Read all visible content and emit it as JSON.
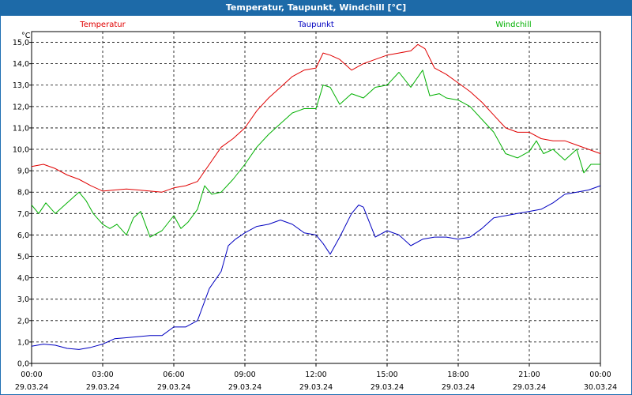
{
  "window": {
    "title": "Temperatur, Taupunkt, Windchill [°C]"
  },
  "chart_data": {
    "type": "line",
    "title": "Temperatur, Taupunkt, Windchill [°C]",
    "ylabel": "°C",
    "ylim": [
      0,
      15.5
    ],
    "yticks": [
      "0,0",
      "1,0",
      "2,0",
      "3,0",
      "4,0",
      "5,0",
      "6,0",
      "7,0",
      "8,0",
      "9,0",
      "10,0",
      "11,0",
      "12,0",
      "13,0",
      "14,0",
      "15,0"
    ],
    "xlim": [
      0,
      24
    ],
    "xticks": [
      {
        "time": "00:00",
        "date": "29.03.24"
      },
      {
        "time": "03:00",
        "date": "29.03.24"
      },
      {
        "time": "06:00",
        "date": "29.03.24"
      },
      {
        "time": "09:00",
        "date": "29.03.24"
      },
      {
        "time": "12:00",
        "date": "29.03.24"
      },
      {
        "time": "15:00",
        "date": "29.03.24"
      },
      {
        "time": "18:00",
        "date": "29.03.24"
      },
      {
        "time": "21:00",
        "date": "29.03.24"
      },
      {
        "time": "00:00",
        "date": "30.03.24"
      }
    ],
    "grid": true,
    "legend_position": "top",
    "series": [
      {
        "name": "Temperatur",
        "color": "#e00000",
        "points": [
          [
            0,
            9.2
          ],
          [
            0.5,
            9.3
          ],
          [
            1,
            9.1
          ],
          [
            1.5,
            8.8
          ],
          [
            2,
            8.6
          ],
          [
            2.5,
            8.3
          ],
          [
            3,
            8.05
          ],
          [
            3.5,
            8.1
          ],
          [
            4,
            8.15
          ],
          [
            4.5,
            8.1
          ],
          [
            5,
            8.05
          ],
          [
            5.5,
            8.0
          ],
          [
            6,
            8.2
          ],
          [
            6.5,
            8.3
          ],
          [
            7,
            8.5
          ],
          [
            7.5,
            9.3
          ],
          [
            8,
            10.1
          ],
          [
            8.5,
            10.5
          ],
          [
            9,
            11.0
          ],
          [
            9.5,
            11.8
          ],
          [
            10,
            12.4
          ],
          [
            10.5,
            12.9
          ],
          [
            11,
            13.4
          ],
          [
            11.5,
            13.7
          ],
          [
            12,
            13.8
          ],
          [
            12.3,
            14.5
          ],
          [
            12.6,
            14.4
          ],
          [
            13,
            14.2
          ],
          [
            13.5,
            13.7
          ],
          [
            14,
            14.0
          ],
          [
            14.5,
            14.2
          ],
          [
            15,
            14.4
          ],
          [
            15.5,
            14.5
          ],
          [
            16,
            14.6
          ],
          [
            16.3,
            14.9
          ],
          [
            16.6,
            14.7
          ],
          [
            17,
            13.8
          ],
          [
            17.5,
            13.5
          ],
          [
            18,
            13.1
          ],
          [
            18.5,
            12.7
          ],
          [
            19,
            12.2
          ],
          [
            19.5,
            11.6
          ],
          [
            20,
            11.0
          ],
          [
            20.5,
            10.8
          ],
          [
            21,
            10.8
          ],
          [
            21.5,
            10.5
          ],
          [
            22,
            10.4
          ],
          [
            22.5,
            10.4
          ],
          [
            23,
            10.2
          ],
          [
            23.5,
            10.0
          ],
          [
            24,
            9.8
          ]
        ]
      },
      {
        "name": "Taupunkt",
        "color": "#0000c0",
        "points": [
          [
            0,
            0.8
          ],
          [
            0.5,
            0.9
          ],
          [
            1,
            0.85
          ],
          [
            1.5,
            0.7
          ],
          [
            2,
            0.65
          ],
          [
            2.5,
            0.75
          ],
          [
            3,
            0.9
          ],
          [
            3.5,
            1.15
          ],
          [
            4,
            1.2
          ],
          [
            4.5,
            1.25
          ],
          [
            5,
            1.3
          ],
          [
            5.5,
            1.3
          ],
          [
            6,
            1.7
          ],
          [
            6.5,
            1.7
          ],
          [
            7,
            2.0
          ],
          [
            7.5,
            3.5
          ],
          [
            8,
            4.3
          ],
          [
            8.3,
            5.5
          ],
          [
            8.6,
            5.8
          ],
          [
            9,
            6.1
          ],
          [
            9.5,
            6.4
          ],
          [
            10,
            6.5
          ],
          [
            10.5,
            6.7
          ],
          [
            11,
            6.5
          ],
          [
            11.5,
            6.1
          ],
          [
            12,
            6.0
          ],
          [
            12.3,
            5.6
          ],
          [
            12.6,
            5.1
          ],
          [
            13,
            5.9
          ],
          [
            13.5,
            7.0
          ],
          [
            13.8,
            7.4
          ],
          [
            14,
            7.3
          ],
          [
            14.5,
            5.9
          ],
          [
            15,
            6.2
          ],
          [
            15.5,
            6.0
          ],
          [
            16,
            5.5
          ],
          [
            16.5,
            5.8
          ],
          [
            17,
            5.9
          ],
          [
            17.5,
            5.9
          ],
          [
            18,
            5.8
          ],
          [
            18.5,
            5.9
          ],
          [
            19,
            6.3
          ],
          [
            19.5,
            6.8
          ],
          [
            20,
            6.9
          ],
          [
            20.5,
            7.0
          ],
          [
            21,
            7.1
          ],
          [
            21.5,
            7.2
          ],
          [
            22,
            7.5
          ],
          [
            22.5,
            7.9
          ],
          [
            23,
            8.0
          ],
          [
            23.5,
            8.1
          ],
          [
            24,
            8.3
          ]
        ]
      },
      {
        "name": "Windchill",
        "color": "#00b000",
        "points": [
          [
            0,
            7.4
          ],
          [
            0.3,
            7.0
          ],
          [
            0.6,
            7.5
          ],
          [
            1,
            7.0
          ],
          [
            1.5,
            7.5
          ],
          [
            2,
            8.0
          ],
          [
            2.3,
            7.6
          ],
          [
            2.6,
            7.0
          ],
          [
            3,
            6.5
          ],
          [
            3.3,
            6.3
          ],
          [
            3.6,
            6.5
          ],
          [
            4,
            6.0
          ],
          [
            4.3,
            6.8
          ],
          [
            4.6,
            7.1
          ],
          [
            5,
            5.9
          ],
          [
            5.5,
            6.2
          ],
          [
            6,
            6.9
          ],
          [
            6.3,
            6.3
          ],
          [
            6.6,
            6.6
          ],
          [
            7,
            7.2
          ],
          [
            7.3,
            8.3
          ],
          [
            7.6,
            7.9
          ],
          [
            8,
            8.0
          ],
          [
            8.5,
            8.6
          ],
          [
            9,
            9.3
          ],
          [
            9.5,
            10.1
          ],
          [
            10,
            10.7
          ],
          [
            10.5,
            11.2
          ],
          [
            11,
            11.7
          ],
          [
            11.5,
            11.9
          ],
          [
            12,
            11.9
          ],
          [
            12.3,
            13.0
          ],
          [
            12.6,
            12.9
          ],
          [
            13,
            12.1
          ],
          [
            13.5,
            12.6
          ],
          [
            14,
            12.4
          ],
          [
            14.5,
            12.9
          ],
          [
            15,
            13.0
          ],
          [
            15.5,
            13.6
          ],
          [
            16,
            12.9
          ],
          [
            16.5,
            13.7
          ],
          [
            16.8,
            12.5
          ],
          [
            17.2,
            12.6
          ],
          [
            17.5,
            12.4
          ],
          [
            18,
            12.3
          ],
          [
            18.5,
            12.0
          ],
          [
            19,
            11.4
          ],
          [
            19.5,
            10.8
          ],
          [
            20,
            9.8
          ],
          [
            20.5,
            9.6
          ],
          [
            21,
            9.9
          ],
          [
            21.3,
            10.4
          ],
          [
            21.6,
            9.8
          ],
          [
            22,
            10.0
          ],
          [
            22.5,
            9.5
          ],
          [
            23,
            10.0
          ],
          [
            23.3,
            8.9
          ],
          [
            23.6,
            9.3
          ],
          [
            24,
            9.3
          ]
        ]
      }
    ]
  }
}
